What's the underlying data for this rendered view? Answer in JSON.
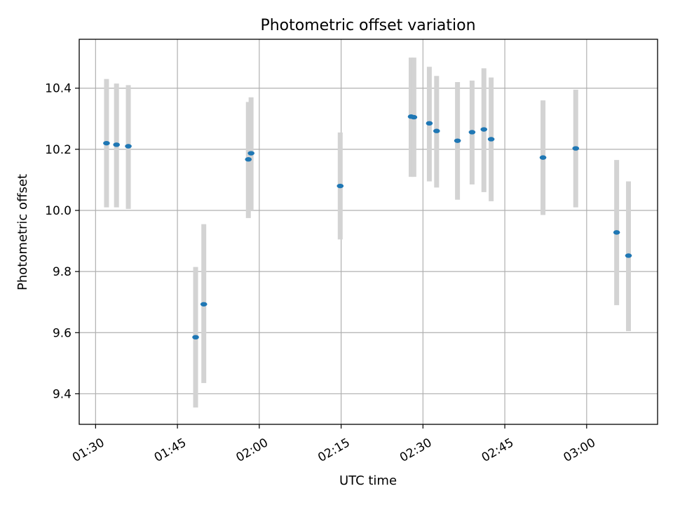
{
  "chart_data": {
    "type": "scatter",
    "title": "Photometric offset variation",
    "xlabel": "UTC time",
    "ylabel": "Photometric offset",
    "xlim": [
      "01:27",
      "03:13"
    ],
    "ylim": [
      9.3,
      10.56
    ],
    "xticks": [
      "01:30",
      "01:45",
      "02:00",
      "02:15",
      "02:30",
      "02:45",
      "03:00"
    ],
    "yticks": [
      9.4,
      9.6,
      9.8,
      10.0,
      10.2,
      10.4
    ],
    "grid": true,
    "colors": {
      "point": "#1f77b4",
      "errorbar": "#d3d3d3"
    },
    "series": [
      {
        "points": [
          {
            "x": "01:32:00",
            "y": 10.22,
            "err_low": 10.01,
            "err_high": 10.43
          },
          {
            "x": "01:33:50",
            "y": 10.215,
            "err_low": 10.01,
            "err_high": 10.415
          },
          {
            "x": "01:36:00",
            "y": 10.21,
            "err_low": 10.005,
            "err_high": 10.41
          },
          {
            "x": "01:48:20",
            "y": 9.585,
            "err_low": 9.355,
            "err_high": 9.815
          },
          {
            "x": "01:49:50",
            "y": 9.693,
            "err_low": 9.435,
            "err_high": 9.955
          },
          {
            "x": "01:58:00",
            "y": 10.167,
            "err_low": 9.975,
            "err_high": 10.355
          },
          {
            "x": "01:58:30",
            "y": 10.187,
            "err_low": 10.0,
            "err_high": 10.37
          },
          {
            "x": "02:14:50",
            "y": 10.08,
            "err_low": 9.905,
            "err_high": 10.255
          },
          {
            "x": "02:27:50",
            "y": 10.307,
            "err_low": 10.11,
            "err_high": 10.5
          },
          {
            "x": "02:28:20",
            "y": 10.305,
            "err_low": 10.11,
            "err_high": 10.5
          },
          {
            "x": "02:31:10",
            "y": 10.285,
            "err_low": 10.095,
            "err_high": 10.47
          },
          {
            "x": "02:32:30",
            "y": 10.26,
            "err_low": 10.075,
            "err_high": 10.44
          },
          {
            "x": "02:36:20",
            "y": 10.228,
            "err_low": 10.035,
            "err_high": 10.42
          },
          {
            "x": "02:39:00",
            "y": 10.256,
            "err_low": 10.085,
            "err_high": 10.425
          },
          {
            "x": "02:41:10",
            "y": 10.265,
            "err_low": 10.06,
            "err_high": 10.465
          },
          {
            "x": "02:42:30",
            "y": 10.233,
            "err_low": 10.03,
            "err_high": 10.435
          },
          {
            "x": "02:52:00",
            "y": 10.173,
            "err_low": 9.985,
            "err_high": 10.36
          },
          {
            "x": "02:58:00",
            "y": 10.203,
            "err_low": 10.01,
            "err_high": 10.395
          },
          {
            "x": "03:05:30",
            "y": 9.928,
            "err_low": 9.69,
            "err_high": 10.165
          },
          {
            "x": "03:07:40",
            "y": 9.852,
            "err_low": 9.605,
            "err_high": 10.095
          }
        ]
      }
    ]
  }
}
